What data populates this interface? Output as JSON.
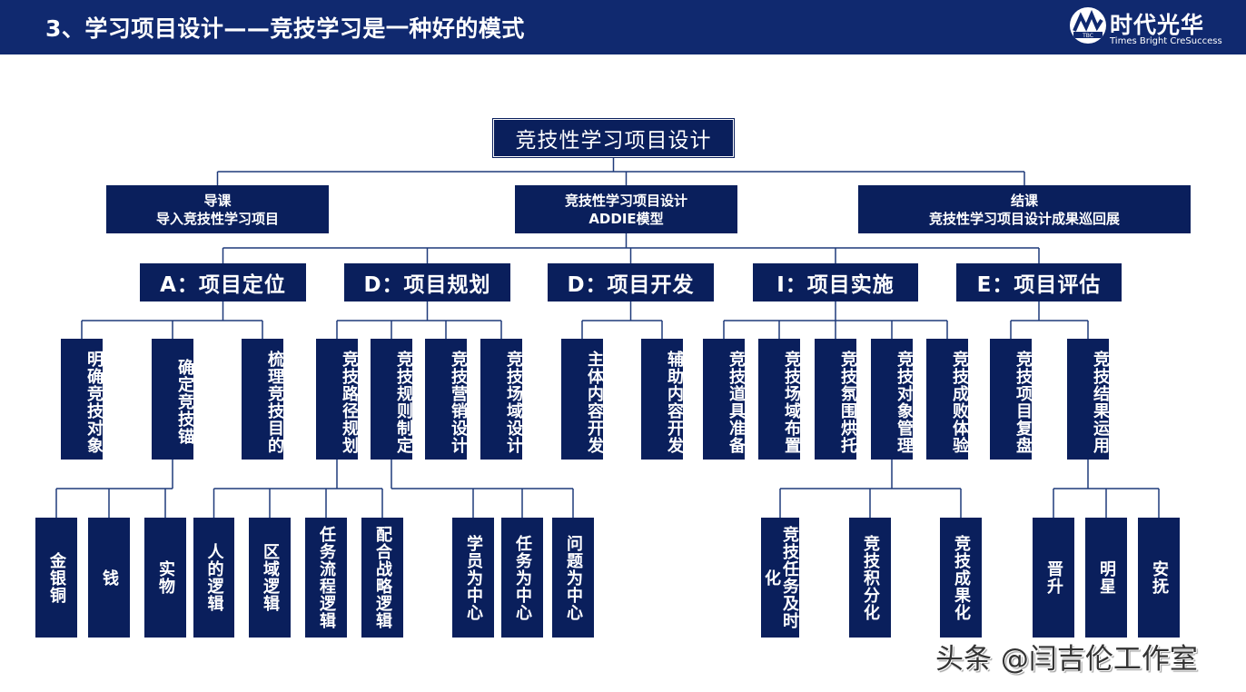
{
  "header": {
    "title": "3、学习项目设计——竞技学习是一种好的模式",
    "logo_cn": "时代光华",
    "logo_en": "Times Bright CreSuccess",
    "logo_mark": "TBC"
  },
  "colors": {
    "header_bg": "#10296f",
    "box_bg": "#0a1f5c",
    "line": "#1f3a7a"
  },
  "tree": {
    "label": "竞技性学习项目设计",
    "children": [
      {
        "line1": "导课",
        "line2": "导入竞技性学习项目",
        "children": []
      },
      {
        "line1": "竞技性学习项目设计",
        "line2": "ADDIE模型",
        "children": [
          {
            "label": "A：项目定位",
            "children": [
              {
                "label": "明确竞技对象",
                "children": []
              },
              {
                "label": "确定竞技锚",
                "children": [
                  {
                    "label": "金银铜"
                  },
                  {
                    "label": "钱"
                  },
                  {
                    "label": "实物"
                  }
                ]
              },
              {
                "label": "梳理竞技目的",
                "children": []
              }
            ]
          },
          {
            "label": "D：项目规划",
            "children": [
              {
                "label": "竞技路径规划",
                "children": [
                  {
                    "label": "人的逻辑"
                  },
                  {
                    "label": "区域逻辑"
                  },
                  {
                    "label": "任务流程逻辑"
                  },
                  {
                    "label": "配合战略逻辑"
                  }
                ]
              },
              {
                "label": "竞技规则制定",
                "children": [
                  {
                    "label": "学员为中心"
                  },
                  {
                    "label": "任务为中心"
                  },
                  {
                    "label": "问题为中心"
                  }
                ]
              },
              {
                "label": "竞技营销设计",
                "children": []
              },
              {
                "label": "竞技场域设计",
                "children": []
              }
            ]
          },
          {
            "label": "D：项目开发",
            "children": [
              {
                "label": "主体内容开发",
                "children": []
              },
              {
                "label": "辅助内容开发",
                "children": []
              }
            ]
          },
          {
            "label": "I：项目实施",
            "children": [
              {
                "label": "竞技道具准备",
                "children": []
              },
              {
                "label": "竞技场域布置",
                "children": []
              },
              {
                "label": "竞技氛围烘托",
                "children": []
              },
              {
                "label": "竞技对象管理",
                "children": [
                  {
                    "label": "竞技任务及时化"
                  },
                  {
                    "label": "竞技积分化"
                  },
                  {
                    "label": "竞技成果化"
                  }
                ]
              },
              {
                "label": "竞技成败体验",
                "children": []
              }
            ]
          },
          {
            "label": "E：项目评估",
            "children": [
              {
                "label": "竞技项目复盘",
                "children": []
              },
              {
                "label": "竞技结果运用",
                "children": [
                  {
                    "label": "晋升"
                  },
                  {
                    "label": "明星"
                  },
                  {
                    "label": "安抚"
                  }
                ]
              }
            ]
          }
        ]
      },
      {
        "line1": "结课",
        "line2": "竞技性学习项目设计成果巡回展",
        "children": []
      }
    ]
  },
  "watermark": "头条 @闫吉伦工作室"
}
